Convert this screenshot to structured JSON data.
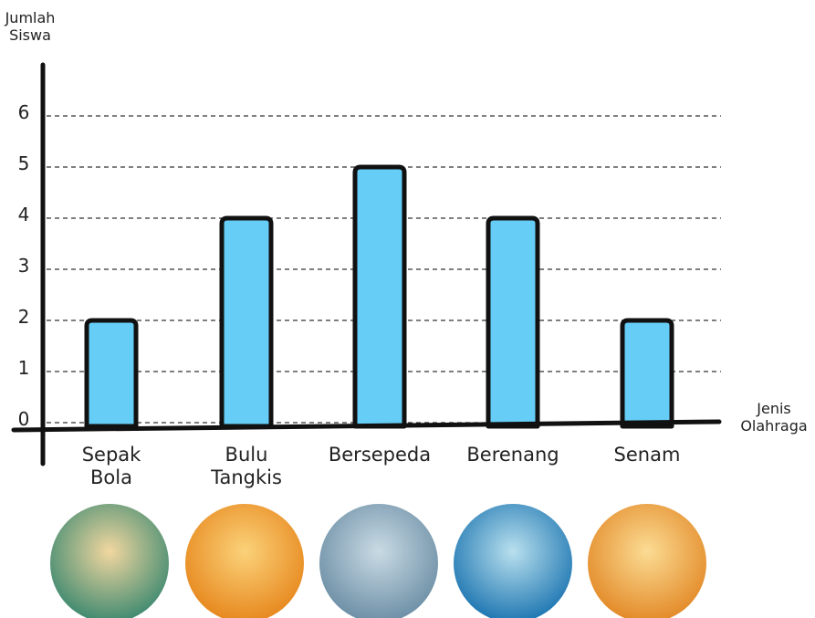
{
  "chart_data": {
    "type": "bar",
    "y_label": "Jumlah Siswa",
    "x_label": "Jenis Olahraga",
    "categories": [
      "Sepak Bola",
      "Bulu Tangkis",
      "Bersepeda",
      "Berenang",
      "Senam"
    ],
    "values": [
      2,
      4,
      5,
      4,
      2
    ],
    "color": "#66cdf6",
    "ylim": [
      0,
      7
    ],
    "yticks": [
      0,
      1,
      2,
      3,
      4,
      5,
      6
    ],
    "grid": true
  }
}
